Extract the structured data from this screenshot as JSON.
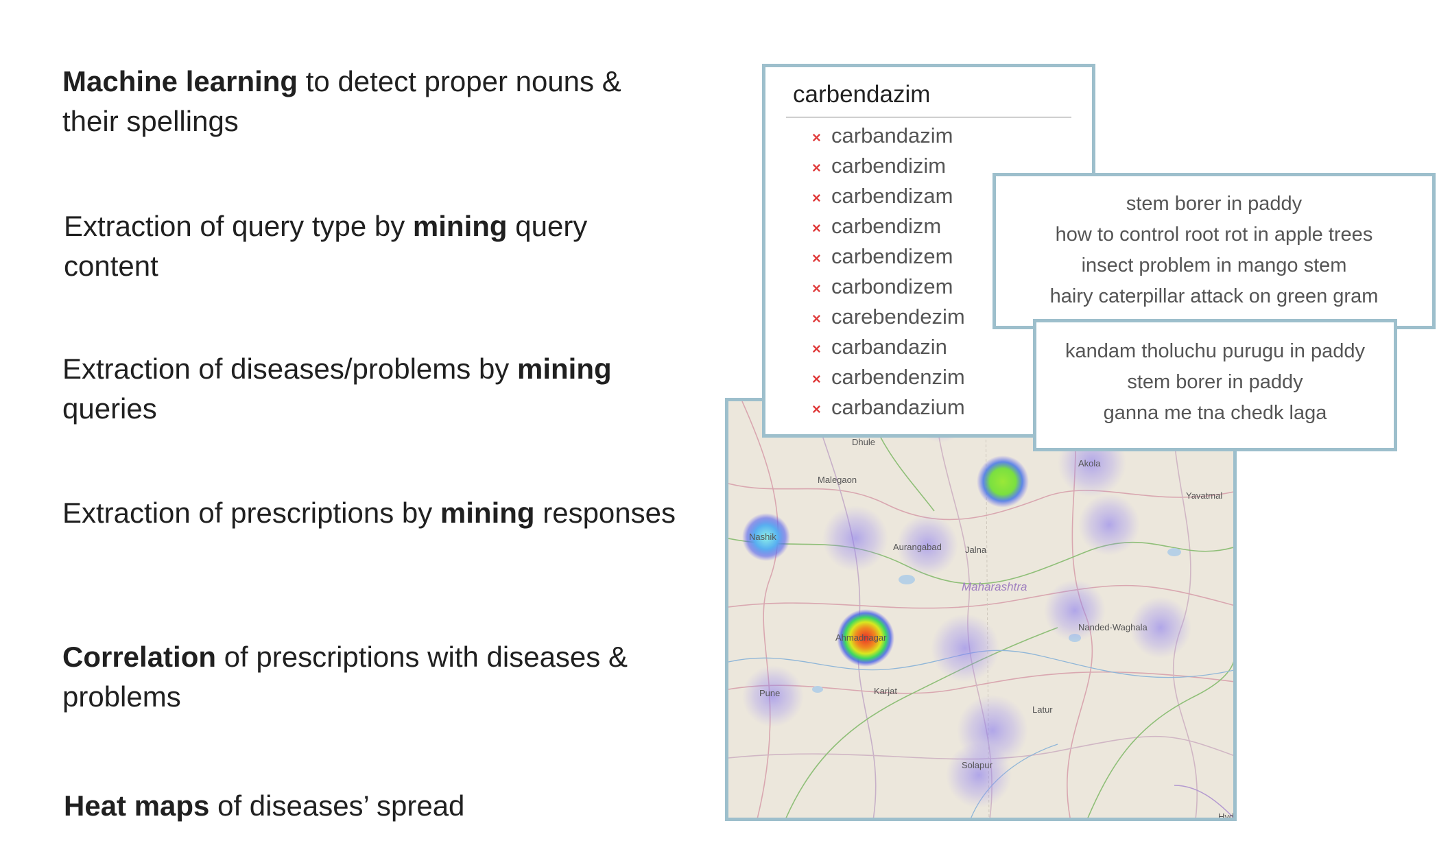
{
  "bullets": [
    {
      "bold": "Machine learning",
      "rest": " to detect proper nouns & their spellings"
    },
    {
      "before": "Extraction of query type by ",
      "bold": "mining",
      "after": " query content"
    },
    {
      "before": "Extraction of diseases/problems by ",
      "bold": "mining",
      "after": " queries"
    },
    {
      "before": "Extraction of prescriptions by ",
      "bold": "mining",
      "after": " responses"
    },
    {
      "bold": "Correlation",
      "rest": " of prescriptions with diseases & problems"
    },
    {
      "bold": "Heat maps",
      "rest": " of diseases’ spread"
    }
  ],
  "spelling": {
    "term": "carbendazim",
    "variants": [
      "carbandazim",
      "carbendizim",
      "carbendizam",
      "carbendizm",
      "carbendizem",
      "carbondizem",
      "carebendezim",
      "carbandazin",
      "carbendenzim",
      "carbandazium"
    ],
    "marker_color": "#e03a3a"
  },
  "queries_english": [
    "stem borer in paddy",
    "how to control root rot in apple trees",
    "insect problem in mango stem",
    "hairy caterpillar attack on green gram"
  ],
  "queries_mixed": [
    "kandam tholuchu purugu in paddy",
    "stem borer in paddy",
    "ganna me tna chedk laga"
  ],
  "map": {
    "state": "Maharashtra",
    "cities": [
      "Dhule",
      "Malegaon",
      "Akola",
      "Yavatmal",
      "Nashik",
      "Aurangabad",
      "Jalna",
      "Nanded-Waghala",
      "Ahmadnagar",
      "Pune",
      "Karjat",
      "Latur",
      "Solapur",
      "Hyd"
    ],
    "border_color": "#9dbfcc"
  }
}
